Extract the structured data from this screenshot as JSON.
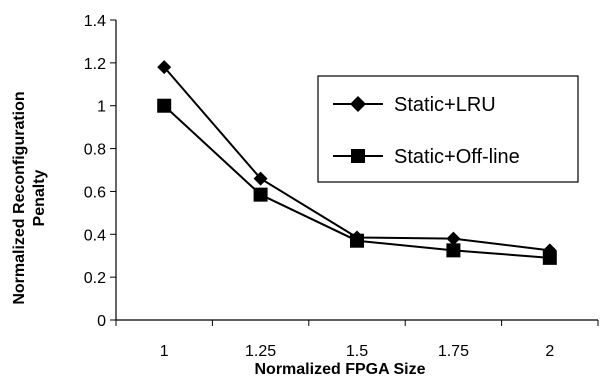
{
  "chart_data": {
    "type": "line",
    "xlabel": "Normalized FPGA Size",
    "ylabel_lines": [
      "Normalized Reconfiguration",
      "Penalty"
    ],
    "categories": [
      "1",
      "1.25",
      "1.5",
      "1.75",
      "2"
    ],
    "yticks": [
      "0",
      "0.2",
      "0.4",
      "0.6",
      "0.8",
      "1",
      "1.2",
      "1.4"
    ],
    "ylim": [
      0,
      1.4
    ],
    "grid": false,
    "legend_position": "right",
    "series": [
      {
        "name": "Static+LRU",
        "marker": "diamond",
        "values": [
          1.18,
          0.66,
          0.385,
          0.38,
          0.325
        ]
      },
      {
        "name": "Static+Off-line",
        "marker": "square",
        "values": [
          1.0,
          0.585,
          0.37,
          0.325,
          0.29
        ]
      }
    ],
    "colors": {
      "line": "#000000",
      "background": "#ffffff"
    }
  }
}
